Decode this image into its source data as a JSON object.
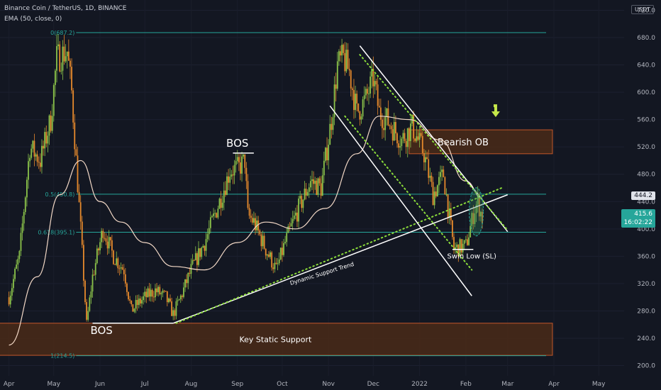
{
  "header": {
    "symbol_line": "Binance Coin / TetherUS, 1D, BINANCE",
    "indicator_line": "EMA (50, close, 0)",
    "currency": "USDT"
  },
  "price_tags": {
    "level_tag": "444.2",
    "last_price": "415.6",
    "countdown": "16:02:22"
  },
  "colors": {
    "background": "#131722",
    "up": "#8bc34a",
    "down": "#e6892c",
    "ema": "#f3d9c7",
    "fib": "#26a69a",
    "zone_fill": "#4a2a17",
    "zone_border": "#c2572a",
    "trend": "#ffffff",
    "dots": "#8bdc3a",
    "arrow": "#c6e84a",
    "highlight": "#2e7d5b"
  },
  "chart_data": {
    "type": "candlestick",
    "y_axis": {
      "ticks": [
        200.0,
        240.0,
        280.0,
        320.0,
        360.0,
        400.0,
        440.0,
        480.0,
        520.0,
        560.0,
        600.0,
        640.0,
        680.0,
        720.0
      ],
      "tick_labels": [
        "200.0",
        "240.0",
        "280.0",
        "320.0",
        "360.0",
        "400.0",
        "440.0",
        "480.0",
        "520.0",
        "560.0",
        "600.0",
        "640.0",
        "680.0",
        "720.0"
      ],
      "range": [
        185,
        735
      ]
    },
    "x_axis": {
      "tick_labels": [
        "Apr",
        "May",
        "Jun",
        "Jul",
        "Aug",
        "Sep",
        "Oct",
        "Nov",
        "Dec",
        "2022",
        "Feb",
        "Mar",
        "Apr",
        "May"
      ]
    },
    "price_path": [
      [
        "2021-04-01",
        300
      ],
      [
        "2021-04-08",
        360
      ],
      [
        "2021-04-15",
        520
      ],
      [
        "2021-04-22",
        500
      ],
      [
        "2021-04-29",
        560
      ],
      [
        "2021-05-03",
        650
      ],
      [
        "2021-05-10",
        660
      ],
      [
        "2021-05-13",
        600
      ],
      [
        "2021-05-19",
        400
      ],
      [
        "2021-05-23",
        260
      ],
      [
        "2021-05-27",
        330
      ],
      [
        "2021-06-03",
        400
      ],
      [
        "2021-06-10",
        360
      ],
      [
        "2021-06-17",
        340
      ],
      [
        "2021-06-22",
        280
      ],
      [
        "2021-06-26",
        290
      ],
      [
        "2021-07-01",
        300
      ],
      [
        "2021-07-08",
        310
      ],
      [
        "2021-07-15",
        300
      ],
      [
        "2021-07-20",
        275
      ],
      [
        "2021-07-25",
        300
      ],
      [
        "2021-08-01",
        340
      ],
      [
        "2021-08-10",
        380
      ],
      [
        "2021-08-20",
        440
      ],
      [
        "2021-08-27",
        485
      ],
      [
        "2021-09-02",
        490
      ],
      [
        "2021-09-06",
        500
      ],
      [
        "2021-09-08",
        420
      ],
      [
        "2021-09-12",
        410
      ],
      [
        "2021-09-20",
        370
      ],
      [
        "2021-09-27",
        340
      ],
      [
        "2021-10-03",
        380
      ],
      [
        "2021-10-10",
        420
      ],
      [
        "2021-10-20",
        470
      ],
      [
        "2021-10-27",
        460
      ],
      [
        "2021-11-03",
        560
      ],
      [
        "2021-11-07",
        640
      ],
      [
        "2021-11-11",
        650
      ],
      [
        "2021-11-15",
        630
      ],
      [
        "2021-11-20",
        570
      ],
      [
        "2021-11-26",
        590
      ],
      [
        "2021-12-01",
        620
      ],
      [
        "2021-12-05",
        570
      ],
      [
        "2021-12-10",
        560
      ],
      [
        "2021-12-20",
        530
      ],
      [
        "2021-12-27",
        550
      ],
      [
        "2022-01-04",
        510
      ],
      [
        "2022-01-10",
        450
      ],
      [
        "2022-01-17",
        480
      ],
      [
        "2022-01-22",
        400
      ],
      [
        "2022-01-24",
        370
      ],
      [
        "2022-02-01",
        375
      ],
      [
        "2022-02-07",
        430
      ],
      [
        "2022-02-09",
        440
      ],
      [
        "2022-02-12",
        415.6
      ]
    ],
    "ema_path": [
      [
        "2021-04-01",
        230
      ],
      [
        "2021-04-20",
        330
      ],
      [
        "2021-05-05",
        450
      ],
      [
        "2021-05-19",
        500
      ],
      [
        "2021-06-01",
        440
      ],
      [
        "2021-06-15",
        410
      ],
      [
        "2021-07-01",
        380
      ],
      [
        "2021-07-20",
        345
      ],
      [
        "2021-08-10",
        340
      ],
      [
        "2021-09-01",
        380
      ],
      [
        "2021-09-20",
        410
      ],
      [
        "2021-10-10",
        400
      ],
      [
        "2021-10-30",
        430
      ],
      [
        "2021-11-20",
        510
      ],
      [
        "2021-12-05",
        565
      ],
      [
        "2021-12-25",
        560
      ],
      [
        "2022-01-15",
        530
      ],
      [
        "2022-02-01",
        470
      ],
      [
        "2022-02-12",
        445
      ]
    ],
    "fib_levels": [
      {
        "label": "0(687.2)",
        "value": 687.2
      },
      {
        "label": "0.5(450.8)",
        "value": 450.8
      },
      {
        "label": "0.618(395.1)",
        "value": 395.1
      },
      {
        "label": "1(214.5)",
        "value": 214.5
      }
    ],
    "zones": [
      {
        "label": "Bearish OB",
        "from": "2021-12-25",
        "to": "2022-03-31",
        "low": 510,
        "high": 545
      },
      {
        "label": "Key Static Support",
        "from": "2021-03-25",
        "to": "2022-03-31",
        "low": 215,
        "high": 262
      }
    ],
    "annotations": [
      {
        "text": "BOS",
        "date": "2021-09-01",
        "value": 520
      },
      {
        "text": "BOS",
        "date": "2021-06-02",
        "value": 246
      },
      {
        "text": "Dynamic Support Trend",
        "date": "2021-10-28",
        "value": 332
      },
      {
        "text": "Swin Low (SL)",
        "date": "2022-02-05",
        "value": 357
      }
    ],
    "trend_lines": [
      {
        "kind": "solid",
        "from": [
          "2021-07-20",
          262
        ],
        "to": [
          "2022-03-01",
          450
        ]
      },
      {
        "kind": "dotted",
        "from": [
          "2021-07-22",
          262
        ],
        "to": [
          "2022-02-25",
          460
        ]
      },
      {
        "kind": "solid",
        "from": [
          "2021-11-02",
          580
        ],
        "to": [
          "2022-02-05",
          302
        ]
      },
      {
        "kind": "dotted",
        "from": [
          "2021-11-12",
          565
        ],
        "to": [
          "2022-02-05",
          340
        ]
      },
      {
        "kind": "solid",
        "from": [
          "2021-11-22",
          668
        ],
        "to": [
          "2022-03-01",
          396
        ]
      },
      {
        "kind": "dotted",
        "from": [
          "2021-11-22",
          655
        ],
        "to": [
          "2022-03-01",
          398
        ]
      }
    ]
  }
}
